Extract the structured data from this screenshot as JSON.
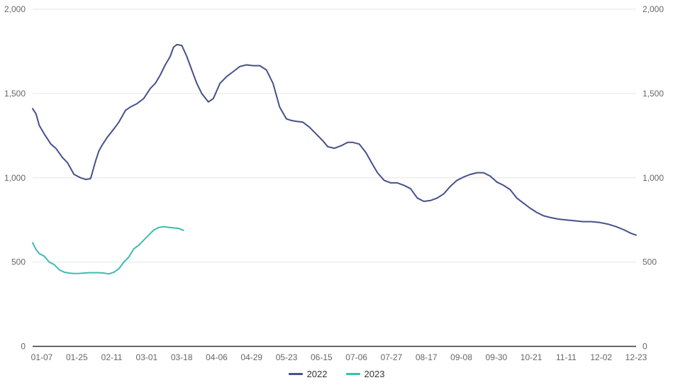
{
  "chart_data": {
    "type": "line",
    "title": "",
    "xlabel": "",
    "ylabel": "",
    "ylim": [
      0,
      2000
    ],
    "y_ticks": [
      "0",
      "500",
      "1,000",
      "1,500",
      "2,000"
    ],
    "y_tick_values": [
      0,
      500,
      1000,
      1500,
      2000
    ],
    "x_ticks": [
      "01-07",
      "01-25",
      "02-11",
      "03-01",
      "03-18",
      "04-06",
      "04-29",
      "05-23",
      "06-15",
      "07-06",
      "07-27",
      "08-17",
      "09-08",
      "09-30",
      "10-21",
      "11-11",
      "12-02",
      "12-23"
    ],
    "grid": true,
    "legend_position": "bottom",
    "series": [
      {
        "name": "2022",
        "color": "#46508a",
        "x": [
          "01-01",
          "01-03",
          "01-05",
          "01-08",
          "01-12",
          "01-15",
          "01-19",
          "01-22",
          "01-26",
          "01-30",
          "02-02",
          "02-05",
          "02-08",
          "02-10",
          "02-12",
          "02-15",
          "02-19",
          "02-22",
          "02-26",
          "03-01",
          "03-05",
          "03-09",
          "03-13",
          "03-16",
          "03-19",
          "03-22",
          "03-25",
          "03-27",
          "03-29",
          "04-01",
          "04-04",
          "04-07",
          "04-10",
          "04-13",
          "04-17",
          "04-20",
          "04-24",
          "04-28",
          "05-02",
          "05-06",
          "05-10",
          "05-14",
          "05-18",
          "05-22",
          "05-26",
          "05-30",
          "06-03",
          "06-06",
          "06-09",
          "06-13",
          "06-17",
          "06-21",
          "06-25",
          "06-28",
          "07-02",
          "07-06",
          "07-10",
          "07-13",
          "07-17",
          "07-21",
          "07-25",
          "07-28",
          "08-01",
          "08-05",
          "08-09",
          "08-13",
          "08-17",
          "08-21",
          "08-25",
          "08-29",
          "09-02",
          "09-06",
          "09-10",
          "09-14",
          "09-18",
          "09-22",
          "09-26",
          "09-30",
          "10-04",
          "10-08",
          "10-12",
          "10-16",
          "10-20",
          "10-24",
          "10-28",
          "11-01",
          "11-05",
          "11-09",
          "11-14",
          "11-19",
          "11-24",
          "11-29",
          "12-04",
          "12-09",
          "12-14",
          "12-19",
          "12-24",
          "12-28",
          "12-31"
        ],
        "y": [
          1410,
          1380,
          1310,
          1260,
          1200,
          1175,
          1120,
          1090,
          1020,
          1000,
          990,
          995,
          1100,
          1160,
          1195,
          1240,
          1290,
          1330,
          1400,
          1420,
          1440,
          1470,
          1530,
          1560,
          1610,
          1670,
          1720,
          1775,
          1790,
          1785,
          1720,
          1640,
          1560,
          1500,
          1450,
          1470,
          1560,
          1600,
          1630,
          1660,
          1670,
          1665,
          1665,
          1640,
          1560,
          1420,
          1350,
          1340,
          1335,
          1330,
          1300,
          1260,
          1220,
          1185,
          1175,
          1190,
          1210,
          1210,
          1200,
          1150,
          1080,
          1030,
          985,
          970,
          970,
          955,
          935,
          880,
          860,
          865,
          880,
          905,
          950,
          985,
          1005,
          1020,
          1030,
          1030,
          1010,
          975,
          955,
          930,
          880,
          850,
          820,
          795,
          775,
          765,
          755,
          750,
          745,
          740,
          740,
          735,
          725,
          710,
          690,
          670,
          660
        ]
      },
      {
        "name": "2023",
        "color": "#3dbdaf",
        "x": [
          "01-01",
          "01-03",
          "01-05",
          "01-08",
          "01-11",
          "01-14",
          "01-17",
          "01-20",
          "01-23",
          "01-26",
          "01-29",
          "02-01",
          "02-04",
          "02-07",
          "02-10",
          "02-13",
          "02-16",
          "02-19",
          "02-22",
          "02-25",
          "02-28",
          "03-03",
          "03-06",
          "03-09",
          "03-12",
          "03-15",
          "03-18",
          "03-21",
          "03-24",
          "03-27",
          "03-30",
          "04-02"
        ],
        "y": [
          615,
          575,
          550,
          535,
          500,
          485,
          455,
          440,
          435,
          432,
          433,
          435,
          437,
          437,
          437,
          435,
          430,
          440,
          460,
          500,
          530,
          578,
          600,
          630,
          660,
          690,
          705,
          710,
          706,
          703,
          700,
          688
        ]
      }
    ]
  }
}
